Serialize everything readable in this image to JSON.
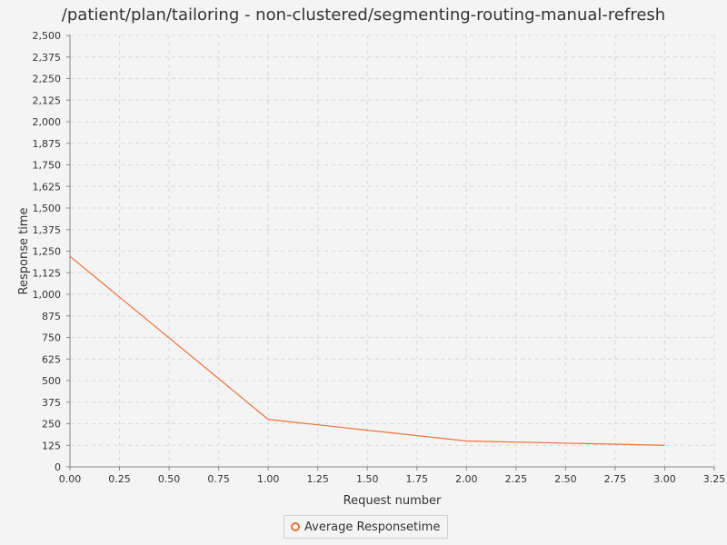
{
  "chart_data": {
    "type": "line",
    "title": "/patient/plan/tailoring - non-clustered/segmenting-routing-manual-refresh",
    "xlabel": "Request number",
    "ylabel": "Response time",
    "xlim": [
      0,
      3.25
    ],
    "ylim": [
      0,
      2500
    ],
    "x_ticks": [
      "0.00",
      "0.25",
      "0.50",
      "0.75",
      "1.00",
      "1.25",
      "1.50",
      "1.75",
      "2.00",
      "2.25",
      "2.50",
      "2.75",
      "3.00",
      "3.25"
    ],
    "y_ticks": [
      "0",
      "125",
      "250",
      "375",
      "500",
      "625",
      "750",
      "875",
      "1,000",
      "1,125",
      "1,250",
      "1,375",
      "1,500",
      "1,625",
      "1,750",
      "1,875",
      "2,000",
      "2,125",
      "2,250",
      "2,375",
      "2,500"
    ],
    "grid": true,
    "legend_position": "bottom-center",
    "series": [
      {
        "name": "Average Responsetime",
        "color": "#e8733d",
        "x": [
          0,
          1,
          2,
          3
        ],
        "y": [
          1220,
          275,
          150,
          125
        ]
      }
    ]
  }
}
